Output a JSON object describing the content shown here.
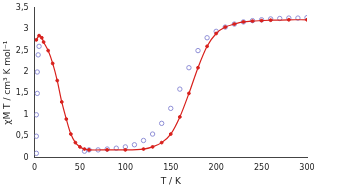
{
  "chart_data": {
    "type": "scatter",
    "x_label": "T / K",
    "y_label": "χM T / cm³ K mol⁻¹",
    "xlim": [
      0,
      300
    ],
    "xticks": [
      0,
      50,
      100,
      150,
      200,
      250,
      300
    ],
    "ylim": [
      0,
      3.5
    ],
    "yticks": [
      0,
      {
        "value": 0.5,
        "label": "0,5"
      },
      1,
      {
        "value": 1.5,
        "label": "1,5"
      },
      2,
      {
        "value": 2.5,
        "label": "2,5"
      },
      3,
      {
        "value": 3.5,
        "label": "3,5"
      }
    ],
    "grid": false,
    "series": [
      {
        "color": "#d8201c",
        "marker": "circle",
        "line_style": "solid",
        "x": [
          2,
          5,
          8,
          10,
          15,
          20,
          25,
          30,
          35,
          40,
          45,
          50,
          55,
          60,
          80,
          100,
          120,
          130,
          140,
          150,
          160,
          170,
          180,
          190,
          200,
          210,
          220,
          230,
          240,
          250,
          260,
          280,
          300
        ],
        "values": [
          2.75,
          2.85,
          2.8,
          2.7,
          2.5,
          2.2,
          1.8,
          1.3,
          0.9,
          0.55,
          0.35,
          0.25,
          0.2,
          0.18,
          0.18,
          0.18,
          0.2,
          0.25,
          0.35,
          0.55,
          0.95,
          1.5,
          2.1,
          2.6,
          2.9,
          3.05,
          3.12,
          3.17,
          3.19,
          3.2,
          3.21,
          3.22,
          3.22
        ]
      },
      {
        "color": "#8f8fd6",
        "marker": "open_circle",
        "line_style": "none",
        "x": [
          2,
          2,
          2,
          3,
          3,
          4,
          5,
          55,
          60,
          70,
          80,
          90,
          100,
          110,
          120,
          130,
          140,
          150,
          160,
          170,
          180,
          190,
          200,
          210,
          220,
          230,
          240,
          250,
          260,
          270,
          280,
          290,
          300
        ],
        "values": [
          0.1,
          0.5,
          1.0,
          1.5,
          2.0,
          2.4,
          2.6,
          0.15,
          0.18,
          0.18,
          0.2,
          0.22,
          0.25,
          0.3,
          0.4,
          0.55,
          0.8,
          1.15,
          1.6,
          2.1,
          2.5,
          2.8,
          2.95,
          3.05,
          3.12,
          3.17,
          3.2,
          3.22,
          3.24,
          3.25,
          3.26,
          3.26,
          3.27
        ]
      }
    ]
  }
}
